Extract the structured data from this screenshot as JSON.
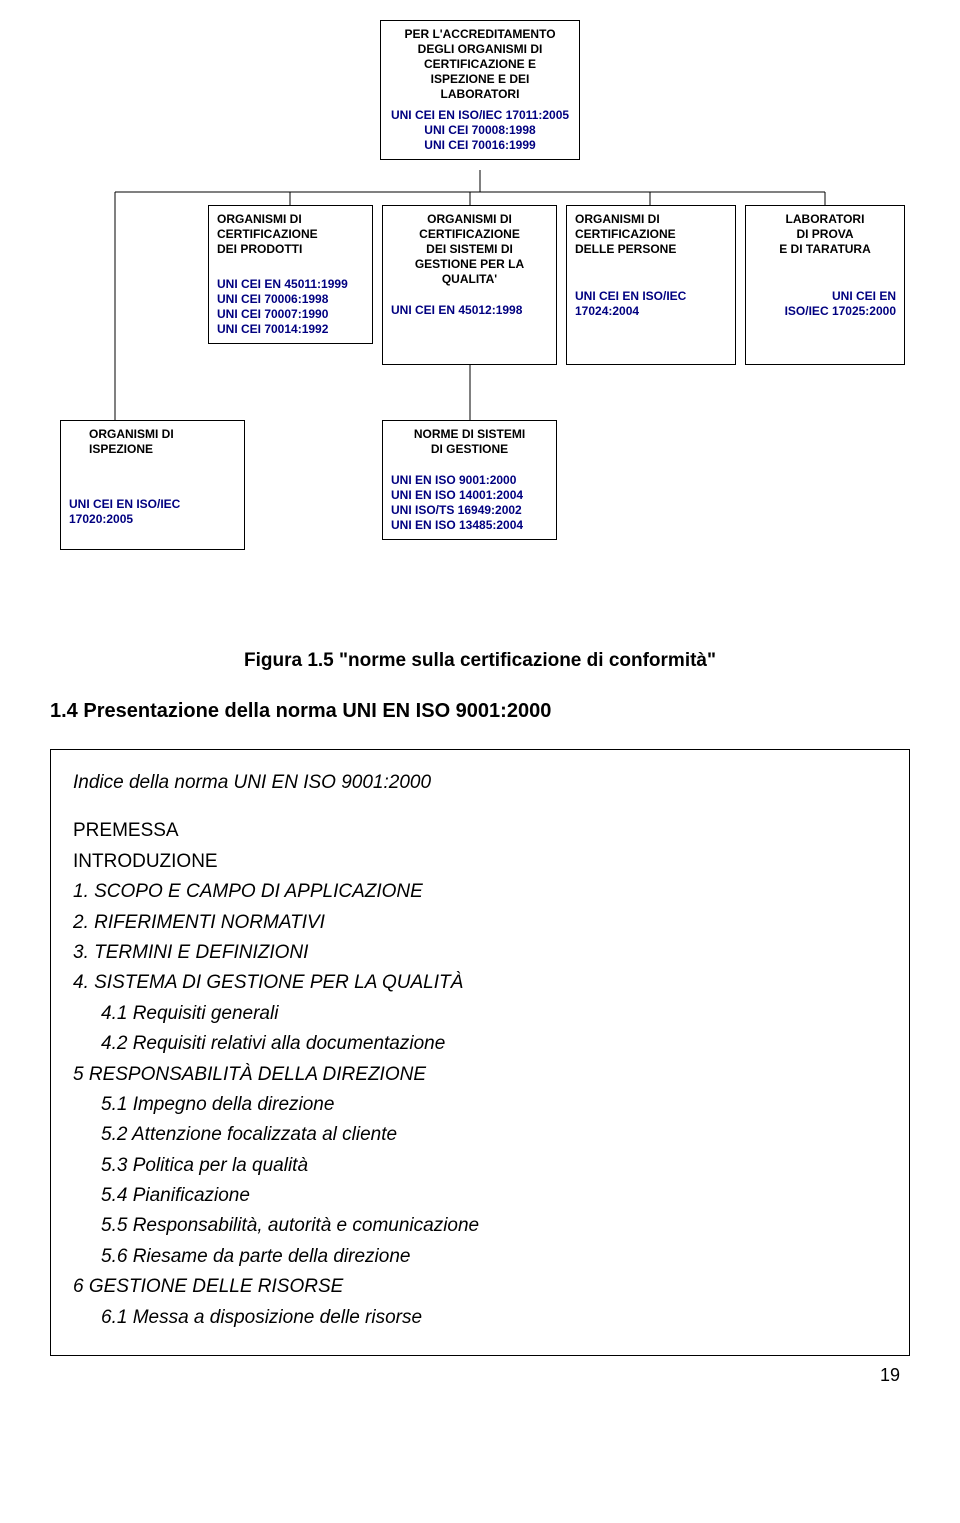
{
  "colors": {
    "standards_color": "#000080",
    "text_color": "#000000",
    "border_color": "#000000",
    "background": "#ffffff"
  },
  "diagram": {
    "top_node": {
      "title_lines": [
        "PER L'ACCREDITAMENTO",
        "DEGLI ORGANISMI DI",
        "CERTIFICAZIONE E",
        "ISPEZIONE E DEI",
        "LABORATORI"
      ],
      "standards": [
        "UNI CEI EN ISO/IEC 17011:2005",
        "UNI CEI 70008:1998",
        "UNI CEI 70016:1999"
      ]
    },
    "row2": {
      "n1": {
        "title_lines": [
          "ORGANISMI DI",
          "CERTIFICAZIONE",
          "DEI PRODOTTI"
        ],
        "standards": [
          "UNI CEI EN 45011:1999",
          "UNI CEI 70006:1998",
          "UNI CEI 70007:1990",
          "UNI CEI 70014:1992"
        ]
      },
      "n2": {
        "title_lines": [
          "ORGANISMI DI",
          "CERTIFICAZIONE",
          "DEI SISTEMI DI",
          "GESTIONE PER LA QUALITA'"
        ],
        "standards": [
          "UNI CEI EN 45012:1998"
        ]
      },
      "n3": {
        "title_lines": [
          "ORGANISMI DI",
          "CERTIFICAZIONE",
          "DELLE PERSONE"
        ],
        "standards": [
          "UNI CEI EN ISO/IEC 17024:2004"
        ]
      },
      "n4": {
        "title_lines": [
          "LABORATORI",
          "DI PROVA",
          "E DI TARATURA"
        ],
        "standards": [
          "UNI CEI EN",
          "ISO/IEC 17025:2000"
        ]
      }
    },
    "row3": {
      "n1": {
        "title_lines": [
          "ORGANISMI DI",
          "ISPEZIONE"
        ],
        "standards": [
          "UNI CEI EN ISO/IEC 17020:2005"
        ]
      },
      "n2": {
        "title_lines": [
          "NORME DI SISTEMI",
          "DI GESTIONE"
        ],
        "standards": [
          "UNI EN ISO 9001:2000",
          "UNI EN ISO 14001:2004",
          "UNI ISO/TS 16949:2002",
          "UNI EN ISO 13485:2004"
        ]
      }
    }
  },
  "figure_caption": "Figura 1.5 \"norme sulla certificazione di conformità\"",
  "section_heading": "1.4 Presentazione della norma UNI EN ISO 9001:2000",
  "index": {
    "title": "Indice della norma UNI EN ISO 9001:2000",
    "lines": [
      {
        "text": "PREMESSA",
        "italic": false,
        "sub": false
      },
      {
        "text": "INTRODUZIONE",
        "italic": false,
        "sub": false
      },
      {
        "text": "1. SCOPO E CAMPO DI APPLICAZIONE",
        "italic": true,
        "sub": false
      },
      {
        "text": "2. RIFERIMENTI NORMATIVI",
        "italic": true,
        "sub": false
      },
      {
        "text": "3. TERMINI E DEFINIZIONI",
        "italic": true,
        "sub": false
      },
      {
        "text": "4. SISTEMA DI GESTIONE PER LA QUALITÀ",
        "italic": true,
        "sub": false
      },
      {
        "text": "4.1 Requisiti generali",
        "italic": true,
        "sub": true
      },
      {
        "text": "4.2 Requisiti relativi alla documentazione",
        "italic": true,
        "sub": true
      },
      {
        "text": "5 RESPONSABILITÀ DELLA DIREZIONE",
        "italic": true,
        "sub": false
      },
      {
        "text": "5.1   Impegno della direzione",
        "italic": true,
        "sub": true
      },
      {
        "text": "5.2   Attenzione focalizzata al cliente",
        "italic": true,
        "sub": true
      },
      {
        "text": "5.3   Politica per la qualità",
        "italic": true,
        "sub": true
      },
      {
        "text": "5.4   Pianificazione",
        "italic": true,
        "sub": true
      },
      {
        "text": "5.5   Responsabilità, autorità e comunicazione",
        "italic": true,
        "sub": true
      },
      {
        "text": "5.6   Riesame da parte della direzione",
        "italic": true,
        "sub": true
      },
      {
        "text": "6 GESTIONE DELLE RISORSE",
        "italic": true,
        "sub": false
      },
      {
        "text": "6.1 Messa a disposizione delle risorse",
        "italic": true,
        "sub": true
      }
    ]
  },
  "page_number": "19"
}
